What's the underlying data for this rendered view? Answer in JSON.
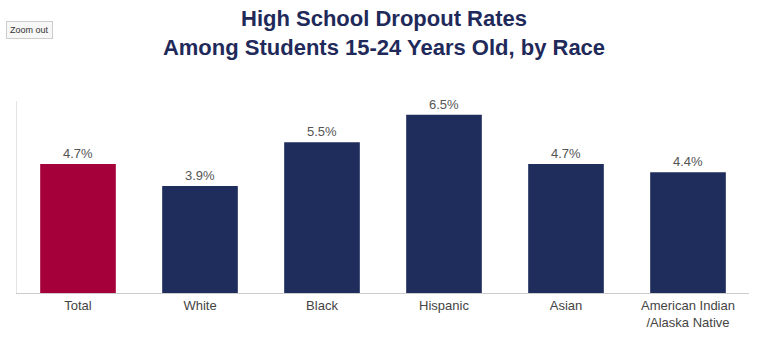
{
  "chart_data": {
    "type": "bar",
    "title": "High School Dropout Rates\nAmong Students 15-24 Years Old, by Race",
    "annotations": [
      "Zoom out"
    ],
    "categories": [
      "Total",
      "White",
      "Black",
      "Hispanic",
      "Asian",
      "American Indian\n/Alaska Native"
    ],
    "values": [
      4.7,
      3.9,
      5.5,
      6.5,
      4.7,
      4.4
    ],
    "value_labels": [
      "4.7%",
      "3.9%",
      "5.5%",
      "6.5%",
      "4.7%",
      "4.4%"
    ],
    "colors": [
      "#a6003a",
      "#1f2d5c",
      "#1f2d5c",
      "#1f2d5c",
      "#1f2d5c",
      "#1f2d5c"
    ],
    "data_labels": true,
    "tick_labels": "x",
    "grid": false,
    "ylim": [
      0,
      7
    ],
    "yticks": []
  }
}
